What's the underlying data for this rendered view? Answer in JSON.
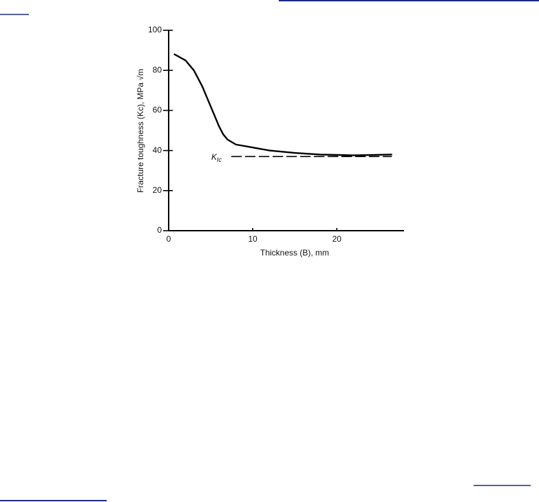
{
  "chart_data": {
    "type": "line",
    "xlabel": "Thickness (B), mm",
    "ylabel": "Fracture toughness (Kc), MPa √m",
    "annotation": {
      "main": "K",
      "sub": "Ic"
    },
    "xlim": [
      0,
      28
    ],
    "xticks": [
      0,
      10,
      20
    ],
    "ylim": [
      0,
      100
    ],
    "yticks": [
      0,
      20,
      40,
      60,
      80,
      100
    ],
    "series": [
      {
        "color": "#000000",
        "style": "solid",
        "x": [
          0.7,
          2,
          3,
          4,
          5,
          6,
          6.5,
          7,
          8,
          10,
          12,
          15,
          18,
          20,
          22,
          26.5
        ],
        "values": [
          88,
          85,
          80,
          72,
          62,
          52,
          48,
          45.5,
          43,
          41.5,
          40,
          38.8,
          38,
          37.8,
          37.6,
          38
        ]
      },
      {
        "color": "#000000",
        "style": "dashed",
        "x": [
          7.5,
          26.5
        ],
        "values": [
          37,
          37
        ]
      }
    ]
  }
}
